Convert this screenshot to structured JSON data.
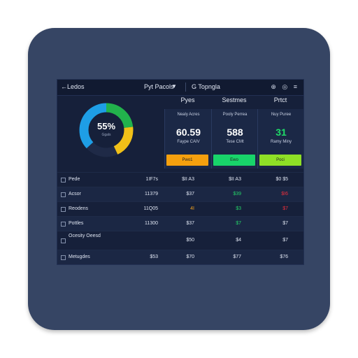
{
  "topbar": {
    "back_arrow": "←",
    "title": "Ledos",
    "dropdown_label": "Pyt Pacols",
    "dropdown_caret": "▼",
    "search_glyph": "G",
    "search_label": "Topngla",
    "icons": [
      "grid-icon",
      "refresh-icon",
      "settings-icon"
    ],
    "right_icons_text": "⊕ ◎ ≡"
  },
  "donut": {
    "label": "55%",
    "sub": "Ggals",
    "segments": [
      {
        "value": 0.23,
        "color": "#22b24c"
      },
      {
        "value": 0.2,
        "color": "#f0c018"
      },
      {
        "value": 0.2,
        "color": "#1f2a47"
      },
      {
        "value": 0.37,
        "color": "#1e9ee6"
      }
    ]
  },
  "columns": [
    {
      "header": "Pyes",
      "sub": "Nealy Acres",
      "value": "60.59",
      "value_color": "#ffffff",
      "note": "Faype CAIV",
      "button_label": "Pwo1",
      "button_color": "#f5a00e"
    },
    {
      "header": "Sestmes",
      "sub": "Pooly Perrea",
      "value": "588",
      "value_color": "#ffffff",
      "note": "Tese CMt",
      "button_label": "Ewo",
      "button_color": "#18d46a"
    },
    {
      "header": "Prtct",
      "sub": "Nuy Puree",
      "value": "31",
      "value_color": "#1fdc68",
      "note": "Ramy Miny",
      "button_label": "Poci",
      "button_color": "#8fe026"
    }
  ],
  "rows": [
    {
      "name": "Pede",
      "c1": "1IF7s",
      "c2": "$II A3",
      "c3": "$II A3",
      "c4": "$0 $5",
      "c3_color": "#dfe5f2",
      "c4_color": "#dfe5f2"
    },
    {
      "name": "Acsor",
      "c1": "11379",
      "c2": "$37",
      "c3": "$39",
      "c4": "$I6",
      "c3_color": "#24d468",
      "c4_color": "#ef2f3b"
    },
    {
      "name": "Reodens",
      "c1": "11Q05",
      "c2": "4I",
      "c3": "$3",
      "c4": "$7",
      "c2_color": "#f0a01c",
      "c3_color": "#24d468",
      "c4_color": "#ef2f3b"
    },
    {
      "name": "Pottles",
      "c1": "11300",
      "c2": "$37",
      "c3": "$7",
      "c4": "$7",
      "c3_color": "#24d468",
      "c4_color": "#dfe5f2"
    },
    {
      "name": "Ocesity Oeesd",
      "c1": "",
      "c2": "$50",
      "c3": "$4",
      "c4": "$7",
      "c3_color": "#dfe5f2",
      "c4_color": "#dfe5f2",
      "tall": true
    },
    {
      "name": "Metugdes",
      "c1": "$53",
      "c2": "$70",
      "c3": "$77",
      "c4": "$76",
      "c3_color": "#dfe5f2",
      "c4_color": "#dfe5f2"
    }
  ]
}
